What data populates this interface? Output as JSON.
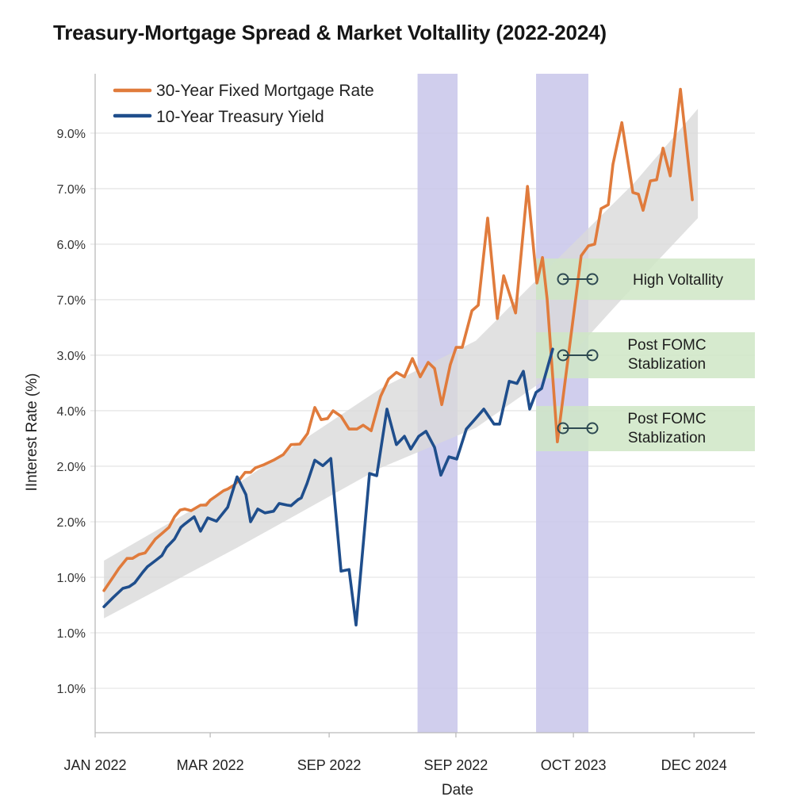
{
  "chart_data": {
    "type": "line",
    "title": "Treasury-Mortgage Spread & Market Voltallity (2022-2024)",
    "xlabel": "Date",
    "ylabel": "IInterest Rate (%)",
    "xlim": [
      2022.0,
      2025.217
    ],
    "ylim": [
      0.2,
      12.07
    ],
    "grid": "horizontal",
    "legend_position": "top-left",
    "x_ticks": [
      {
        "x": 2022.0,
        "label": "JAN 2022"
      },
      {
        "x": 2022.561,
        "label": "MAR 2022"
      },
      {
        "x": 2023.141,
        "label": "SEP 2022"
      },
      {
        "x": 2023.759,
        "label": "SEP 2022"
      },
      {
        "x": 2024.332,
        "label": "OCT 2023"
      },
      {
        "x": 2024.92,
        "label": "DEC 2024"
      }
    ],
    "y_ticks": [
      {
        "y": 1,
        "label": "1.0%"
      },
      {
        "y": 2,
        "label": "1.0%"
      },
      {
        "y": 3,
        "label": "1.0%"
      },
      {
        "y": 4,
        "label": "2.0%"
      },
      {
        "y": 5,
        "label": "2.0%"
      },
      {
        "y": 6,
        "label": "4.0%"
      },
      {
        "y": 7,
        "label": "3.0%"
      },
      {
        "y": 8,
        "label": "7.0%"
      },
      {
        "y": 9,
        "label": "6.0%"
      },
      {
        "y": 10,
        "label": "7.0%"
      },
      {
        "y": 11,
        "label": "9.0%"
      }
    ],
    "series": [
      {
        "name": "30-Year Fixed Mortgage Rate",
        "color": "#e07b3c",
        "x": [
          2022.043,
          2022.089,
          2022.116,
          2022.155,
          2022.182,
          2022.213,
          2022.244,
          2022.294,
          2022.329,
          2022.36,
          2022.387,
          2022.414,
          2022.437,
          2022.468,
          2022.514,
          2022.541,
          2022.561,
          2022.588,
          2022.626,
          2022.646,
          2022.677,
          2022.704,
          2022.731,
          2022.758,
          2022.781,
          2022.824,
          2022.87,
          2022.917,
          2022.955,
          2022.998,
          2023.036,
          2023.071,
          2023.102,
          2023.133,
          2023.16,
          2023.199,
          2023.238,
          2023.276,
          2023.307,
          2023.346,
          2023.392,
          2023.431,
          2023.469,
          2023.508,
          2023.547,
          2023.585,
          2023.624,
          2023.655,
          2023.69,
          2023.732,
          2023.76,
          2023.79,
          2023.837,
          2023.868,
          2023.914,
          2023.961,
          2023.992,
          2024.05,
          2024.108,
          2024.154,
          2024.181,
          2024.204,
          2024.254,
          2024.37,
          2024.405,
          2024.436,
          2024.467,
          2024.502,
          2024.525,
          2024.568,
          2024.622,
          2024.649,
          2024.672,
          2024.707,
          2024.738,
          2024.769,
          2024.804,
          2024.854,
          2024.912
        ],
        "y": [
          2.76,
          3.01,
          3.16,
          3.34,
          3.34,
          3.41,
          3.44,
          3.69,
          3.8,
          3.9,
          4.09,
          4.21,
          4.23,
          4.2,
          4.3,
          4.3,
          4.39,
          4.46,
          4.56,
          4.59,
          4.66,
          4.76,
          4.89,
          4.89,
          4.97,
          5.03,
          5.11,
          5.21,
          5.39,
          5.4,
          5.59,
          6.06,
          5.84,
          5.86,
          6.0,
          5.9,
          5.67,
          5.67,
          5.74,
          5.64,
          6.26,
          6.57,
          6.69,
          6.61,
          6.94,
          6.61,
          6.87,
          6.76,
          6.11,
          6.83,
          7.14,
          7.14,
          7.8,
          7.9,
          9.47,
          7.66,
          8.43,
          7.76,
          10.04,
          8.3,
          8.76,
          8.01,
          5.44,
          8.79,
          8.97,
          9.0,
          9.64,
          9.71,
          10.44,
          11.19,
          9.93,
          9.9,
          9.61,
          10.14,
          10.16,
          10.73,
          10.23,
          11.79,
          9.8
        ]
      },
      {
        "name": "10-Year Treasury Yield",
        "color": "#1f4e8c",
        "x": [
          2022.043,
          2022.089,
          2022.135,
          2022.166,
          2022.193,
          2022.232,
          2022.255,
          2022.294,
          2022.325,
          2022.348,
          2022.387,
          2022.418,
          2022.437,
          2022.483,
          2022.514,
          2022.549,
          2022.592,
          2022.646,
          2022.692,
          2022.735,
          2022.758,
          2022.793,
          2022.828,
          2022.87,
          2022.897,
          2022.936,
          2022.955,
          2022.99,
          2023.005,
          2023.033,
          2023.071,
          2023.11,
          2023.149,
          2023.199,
          2023.238,
          2023.272,
          2023.338,
          2023.373,
          2023.423,
          2023.469,
          2023.508,
          2023.539,
          2023.578,
          2023.613,
          2023.655,
          2023.686,
          2023.725,
          2023.763,
          2023.81,
          2023.848,
          2023.895,
          2023.945,
          2023.972,
          2024.019,
          2024.057,
          2024.088,
          2024.119,
          2024.15,
          2024.177,
          2024.231
        ],
        "y": [
          2.47,
          2.64,
          2.8,
          2.83,
          2.9,
          3.09,
          3.19,
          3.3,
          3.39,
          3.54,
          3.69,
          3.9,
          3.96,
          4.09,
          3.83,
          4.07,
          4.01,
          4.26,
          4.81,
          4.49,
          4.0,
          4.23,
          4.16,
          4.19,
          4.33,
          4.3,
          4.29,
          4.4,
          4.43,
          4.69,
          5.11,
          5.01,
          5.14,
          3.11,
          3.14,
          2.14,
          4.87,
          4.83,
          6.03,
          5.39,
          5.54,
          5.31,
          5.54,
          5.63,
          5.34,
          4.84,
          5.17,
          5.13,
          5.67,
          5.83,
          6.03,
          5.76,
          5.76,
          6.53,
          6.49,
          6.71,
          6.03,
          6.33,
          6.4,
          7.11
        ]
      }
    ],
    "trend_band": {
      "color": "#d9d9d9",
      "x": [
        2022.043,
        2022.696,
        2023.392,
        2023.856,
        2024.243,
        2024.63,
        2024.939
      ],
      "lower": [
        2.26,
        3.54,
        4.97,
        5.69,
        6.69,
        8.26,
        9.47
      ],
      "upper": [
        3.3,
        4.69,
        6.4,
        7.26,
        8.69,
        10.11,
        11.44
      ]
    },
    "shaded_periods": [
      {
        "x_start": 2023.572,
        "x_end": 2023.767,
        "color": "#c8c6ea"
      },
      {
        "x_start": 2024.15,
        "x_end": 2024.405,
        "color": "#c8c6ea"
      }
    ],
    "annotations": [
      {
        "lines": [
          "High Voltallity"
        ],
        "color": "#cfe6c6"
      },
      {
        "lines": [
          "Post FOMC",
          "Stablization"
        ],
        "color": "#cfe6c6"
      },
      {
        "lines": [
          "Post FOMC",
          "Stablization"
        ],
        "color": "#cfe6c6"
      }
    ]
  }
}
